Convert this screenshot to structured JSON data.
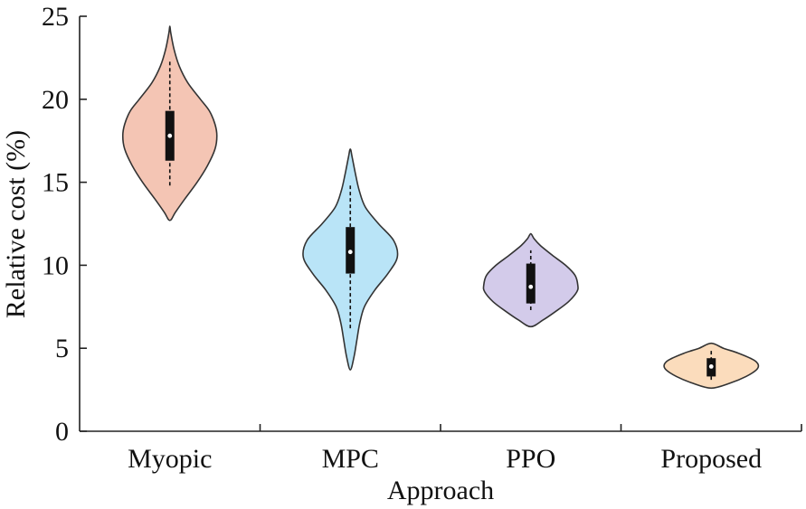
{
  "chart_data": {
    "type": "violin",
    "title": "",
    "xlabel": "Approach",
    "ylabel": "Relative cost (%)",
    "ylim": [
      0,
      25
    ],
    "yticks": [
      0,
      5,
      10,
      15,
      20,
      25
    ],
    "categories": [
      "Myopic",
      "MPC",
      "PPO",
      "Proposed"
    ],
    "series": [
      {
        "category": "Myopic",
        "color": "#f4c5b4",
        "min": 12.7,
        "max": 24.4,
        "whisker_low": 14.8,
        "whisker_high": 22.4,
        "q1": 16.3,
        "median": 17.8,
        "q3": 19.3,
        "profile": [
          [
            12.7,
            0.0
          ],
          [
            13.2,
            0.12
          ],
          [
            14.0,
            0.32
          ],
          [
            15.0,
            0.58
          ],
          [
            16.0,
            0.8
          ],
          [
            17.0,
            0.96
          ],
          [
            17.8,
            1.0
          ],
          [
            18.5,
            0.96
          ],
          [
            19.3,
            0.84
          ],
          [
            20.0,
            0.65
          ],
          [
            21.0,
            0.38
          ],
          [
            22.0,
            0.2
          ],
          [
            23.0,
            0.09
          ],
          [
            24.0,
            0.02
          ],
          [
            24.4,
            0.0
          ]
        ]
      },
      {
        "category": "MPC",
        "color": "#b9e4f7",
        "min": 3.7,
        "max": 17.0,
        "whisker_low": 6.2,
        "whisker_high": 14.8,
        "q1": 9.5,
        "median": 10.8,
        "q3": 12.3,
        "profile": [
          [
            3.7,
            0.0
          ],
          [
            4.5,
            0.08
          ],
          [
            5.5,
            0.14
          ],
          [
            6.5,
            0.2
          ],
          [
            7.5,
            0.3
          ],
          [
            8.5,
            0.52
          ],
          [
            9.5,
            0.8
          ],
          [
            10.5,
            1.0
          ],
          [
            11.5,
            0.92
          ],
          [
            12.5,
            0.6
          ],
          [
            13.5,
            0.32
          ],
          [
            14.5,
            0.19
          ],
          [
            15.5,
            0.11
          ],
          [
            16.5,
            0.04
          ],
          [
            17.0,
            0.0
          ]
        ]
      },
      {
        "category": "PPO",
        "color": "#d3cbea",
        "min": 6.3,
        "max": 11.9,
        "whisker_low": 7.3,
        "whisker_high": 10.9,
        "q1": 7.7,
        "median": 8.7,
        "q3": 10.1,
        "profile": [
          [
            6.3,
            0.0
          ],
          [
            6.7,
            0.26
          ],
          [
            7.2,
            0.52
          ],
          [
            7.8,
            0.8
          ],
          [
            8.4,
            0.98
          ],
          [
            8.8,
            1.0
          ],
          [
            9.4,
            0.94
          ],
          [
            10.0,
            0.74
          ],
          [
            10.6,
            0.46
          ],
          [
            11.2,
            0.2
          ],
          [
            11.6,
            0.07
          ],
          [
            11.9,
            0.0
          ]
        ]
      },
      {
        "category": "Proposed",
        "color": "#fbdcbc",
        "min": 2.6,
        "max": 5.3,
        "whisker_low": 3.1,
        "whisker_high": 4.9,
        "q1": 3.3,
        "median": 3.9,
        "q3": 4.4,
        "profile": [
          [
            2.6,
            0.0
          ],
          [
            2.9,
            0.4
          ],
          [
            3.3,
            0.74
          ],
          [
            3.7,
            0.96
          ],
          [
            4.0,
            1.0
          ],
          [
            4.3,
            0.9
          ],
          [
            4.7,
            0.58
          ],
          [
            5.0,
            0.26
          ],
          [
            5.3,
            0.0
          ]
        ]
      }
    ],
    "grid": false,
    "legend": "none"
  }
}
